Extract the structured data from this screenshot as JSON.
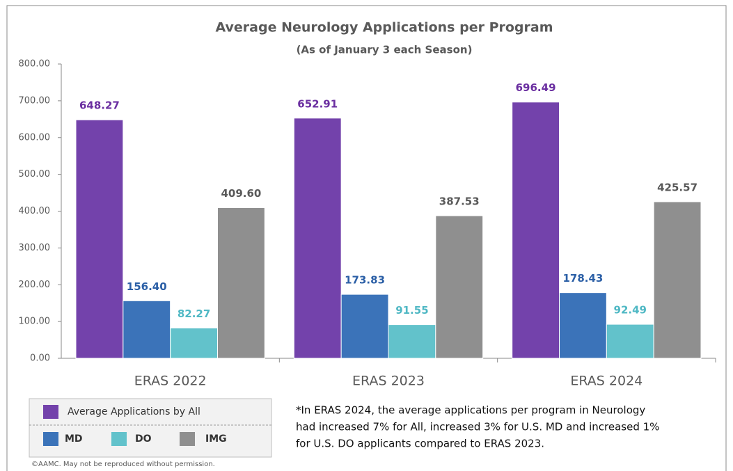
{
  "chart_data": {
    "type": "bar",
    "title": "Average Neurology Applications per Program",
    "subtitle": "(As of January 3 each Season)",
    "categories": [
      "ERAS 2022",
      "ERAS 2023",
      "ERAS 2024"
    ],
    "series": [
      {
        "name": "Average Applications by All",
        "color": "#7342ab",
        "label_color": "#6a2ea0",
        "values": [
          648.27,
          652.91,
          696.49
        ],
        "value_labels": [
          "648.27",
          "652.91",
          "696.49"
        ]
      },
      {
        "name": "MD",
        "color": "#3b73b9",
        "label_color": "#2b5fa6",
        "values": [
          156.4,
          173.83,
          178.43
        ],
        "value_labels": [
          "156.40",
          "173.83",
          "178.43"
        ]
      },
      {
        "name": "DO",
        "color": "#62c2cb",
        "label_color": "#4fb8c4",
        "values": [
          82.27,
          91.55,
          92.49
        ],
        "value_labels": [
          "82.27",
          "91.55",
          "92.49"
        ]
      },
      {
        "name": "IMG",
        "color": "#8f8f8f",
        "label_color": "#595959",
        "values": [
          409.6,
          387.53,
          425.57
        ],
        "value_labels": [
          "409.60",
          "387.53",
          "425.57"
        ]
      }
    ],
    "ylim": [
      0,
      800
    ],
    "yticks": [
      {
        "value": 0,
        "label": "0.00"
      },
      {
        "value": 100,
        "label": "100.00"
      },
      {
        "value": 200,
        "label": "200.00"
      },
      {
        "value": 300,
        "label": "300.00"
      },
      {
        "value": 400,
        "label": "400.00"
      },
      {
        "value": 500,
        "label": "500.00"
      },
      {
        "value": 600,
        "label": "600.00"
      },
      {
        "value": 700,
        "label": "700.00"
      },
      {
        "value": 800,
        "label": "800.00"
      }
    ],
    "grid": false,
    "footnote": [
      "*In ERAS 2024, the average applications per program in Neurology",
      "had increased 7% for All, increased 3% for U.S. MD and increased 1%",
      "for U.S. DO applicants compared to ERAS 2023."
    ],
    "copyright": "©AAMC. May not be reproduced without permission."
  }
}
